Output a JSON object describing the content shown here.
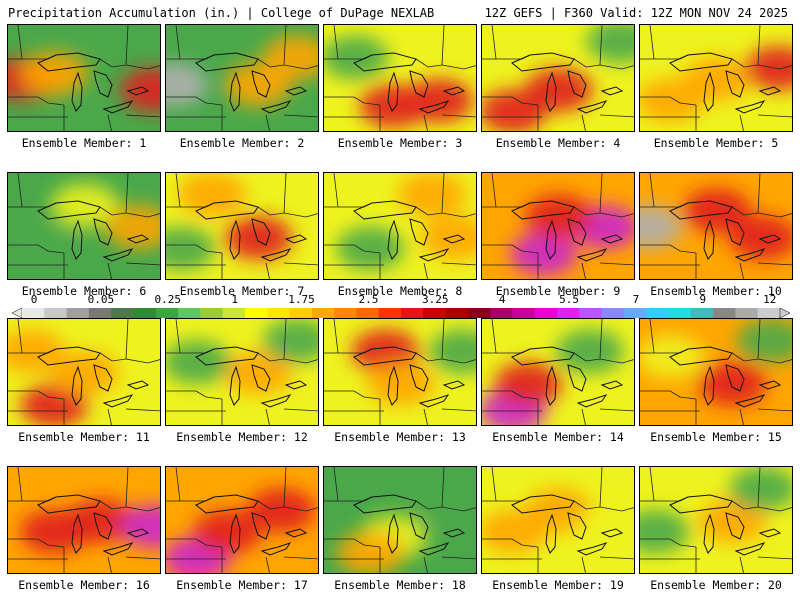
{
  "header": {
    "title_left": "Precipitation Accumulation (in.) | College of DuPage NEXLAB",
    "title_right": "12Z GEFS | F360 Valid: 12Z MON NOV 24 2025"
  },
  "panels": [
    {
      "label": "Ensemble Member: 1",
      "base": "green",
      "hot": [
        [
          0.1,
          0.5,
          "red"
        ],
        [
          0.3,
          0.45,
          "orange"
        ],
        [
          0.95,
          0.6,
          "red"
        ]
      ]
    },
    {
      "label": "Ensemble Member: 2",
      "base": "green",
      "hot": [
        [
          0.05,
          0.55,
          "gray"
        ],
        [
          0.6,
          0.55,
          "orange"
        ],
        [
          0.85,
          0.3,
          "orange"
        ]
      ]
    },
    {
      "label": "Ensemble Member: 3",
      "base": "yellow",
      "hot": [
        [
          0.45,
          0.75,
          "red"
        ],
        [
          0.75,
          0.7,
          "red"
        ],
        [
          0.2,
          0.3,
          "green"
        ]
      ]
    },
    {
      "label": "Ensemble Member: 4",
      "base": "yellow",
      "hot": [
        [
          0.2,
          0.8,
          "red"
        ],
        [
          0.5,
          0.6,
          "red"
        ],
        [
          0.9,
          0.15,
          "green"
        ]
      ]
    },
    {
      "label": "Ensemble Member: 5",
      "base": "yellow",
      "hot": [
        [
          0.5,
          0.5,
          "orange"
        ],
        [
          0.2,
          0.7,
          "orange"
        ],
        [
          0.9,
          0.4,
          "red"
        ]
      ]
    },
    {
      "label": "Ensemble Member: 6",
      "base": "green",
      "hot": [
        [
          0.5,
          0.3,
          "yellow"
        ],
        [
          0.85,
          0.5,
          "orange"
        ],
        [
          0.25,
          0.7,
          "green"
        ]
      ]
    },
    {
      "label": "Ensemble Member: 7",
      "base": "yellow",
      "hot": [
        [
          0.6,
          0.6,
          "red"
        ],
        [
          0.3,
          0.2,
          "orange"
        ],
        [
          0.1,
          0.7,
          "green"
        ]
      ]
    },
    {
      "label": "Ensemble Member: 8",
      "base": "yellow",
      "hot": [
        [
          0.3,
          0.7,
          "green"
        ],
        [
          0.7,
          0.2,
          "orange"
        ],
        [
          0.85,
          0.6,
          "orange"
        ]
      ]
    },
    {
      "label": "Ensemble Member: 9",
      "base": "orange",
      "hot": [
        [
          0.4,
          0.75,
          "magenta"
        ],
        [
          0.8,
          0.5,
          "magenta"
        ],
        [
          0.5,
          0.4,
          "red"
        ]
      ]
    },
    {
      "label": "Ensemble Member: 10",
      "base": "orange",
      "hot": [
        [
          0.05,
          0.5,
          "gray"
        ],
        [
          0.5,
          0.35,
          "red"
        ],
        [
          0.8,
          0.6,
          "red"
        ]
      ]
    },
    {
      "label": "Ensemble Member: 11",
      "base": "yellow",
      "hot": [
        [
          0.3,
          0.8,
          "red"
        ],
        [
          0.5,
          0.5,
          "orange"
        ],
        [
          0.15,
          0.3,
          "orange"
        ]
      ]
    },
    {
      "label": "Ensemble Member: 12",
      "base": "yellow",
      "hot": [
        [
          0.6,
          0.5,
          "orange"
        ],
        [
          0.2,
          0.4,
          "green"
        ],
        [
          0.85,
          0.2,
          "green"
        ]
      ]
    },
    {
      "label": "Ensemble Member: 13",
      "base": "yellow",
      "hot": [
        [
          0.4,
          0.3,
          "red"
        ],
        [
          0.5,
          0.6,
          "orange"
        ],
        [
          0.9,
          0.3,
          "green"
        ]
      ]
    },
    {
      "label": "Ensemble Member: 14",
      "base": "yellow",
      "hot": [
        [
          0.2,
          0.85,
          "magenta"
        ],
        [
          0.3,
          0.6,
          "red"
        ],
        [
          0.7,
          0.3,
          "green"
        ]
      ]
    },
    {
      "label": "Ensemble Member: 15",
      "base": "orange",
      "hot": [
        [
          0.6,
          0.6,
          "red"
        ],
        [
          0.2,
          0.35,
          "yellow"
        ],
        [
          0.85,
          0.2,
          "green"
        ]
      ]
    },
    {
      "label": "Ensemble Member: 16",
      "base": "orange",
      "hot": [
        [
          0.3,
          0.6,
          "red"
        ],
        [
          0.6,
          0.5,
          "red"
        ],
        [
          0.95,
          0.55,
          "magenta"
        ]
      ]
    },
    {
      "label": "Ensemble Member: 17",
      "base": "orange",
      "hot": [
        [
          0.2,
          0.85,
          "magenta"
        ],
        [
          0.4,
          0.6,
          "red"
        ],
        [
          0.75,
          0.4,
          "red"
        ]
      ]
    },
    {
      "label": "Ensemble Member: 18",
      "base": "green",
      "hot": [
        [
          0.45,
          0.65,
          "yellow"
        ],
        [
          0.3,
          0.8,
          "orange"
        ],
        [
          0.8,
          0.3,
          "green"
        ]
      ]
    },
    {
      "label": "Ensemble Member: 19",
      "base": "yellow",
      "hot": [
        [
          0.5,
          0.4,
          "orange"
        ],
        [
          0.2,
          0.6,
          "orange"
        ],
        [
          0.85,
          0.55,
          "yellow"
        ]
      ]
    },
    {
      "label": "Ensemble Member: 20",
      "base": "yellow",
      "hot": [
        [
          0.1,
          0.6,
          "green"
        ],
        [
          0.6,
          0.5,
          "orange"
        ],
        [
          0.8,
          0.2,
          "green"
        ]
      ]
    }
  ],
  "colorbar": {
    "tick_labels": [
      "0",
      "0.05",
      "0.25",
      "1",
      "1.75",
      "2.5",
      "3.25",
      "4",
      "5.5",
      "7",
      "9",
      "12"
    ],
    "tick_steps": [
      0,
      3,
      6,
      9,
      12,
      15,
      18,
      21,
      24,
      27,
      30,
      33
    ],
    "colors": [
      "#e8e8e8",
      "#c8c8c8",
      "#a0a0a0",
      "#787878",
      "#507850",
      "#2e8b2e",
      "#3ca53c",
      "#5ac85a",
      "#9acd32",
      "#c8e632",
      "#ffff00",
      "#ffe600",
      "#ffcc00",
      "#ffaa00",
      "#ff8800",
      "#ff6600",
      "#ff3300",
      "#ee1111",
      "#cc0000",
      "#aa0000",
      "#880020",
      "#aa0066",
      "#cc0099",
      "#ee00cc",
      "#dd22ee",
      "#bb55ff",
      "#8888ff",
      "#66aaff",
      "#33ccff",
      "#22dddd",
      "#44bbbb",
      "#888888",
      "#aaaaaa",
      "#cccccc"
    ]
  },
  "palette": {
    "green": "#4aa84a",
    "yellow": "#eef21e",
    "orange": "#ffa500",
    "red": "#e02020",
    "magenta": "#cc22cc",
    "gray": "#b0b0b0"
  }
}
